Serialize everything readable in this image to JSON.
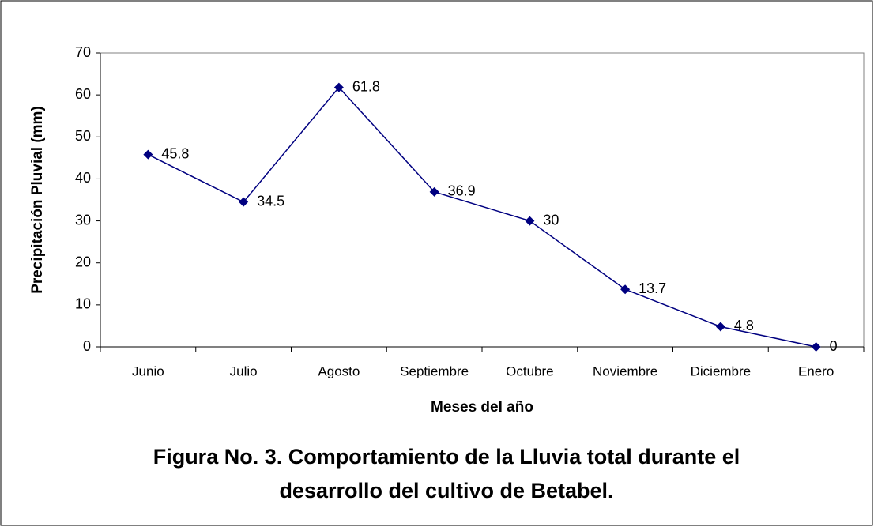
{
  "chart_data": {
    "type": "line",
    "caption": [
      "Figura No. 3. Comportamiento de la Lluvia total durante el",
      "desarrollo del cultivo de Betabel."
    ],
    "x_label": "Meses del año",
    "y_label": "Precipitación Pluvial (mm)",
    "categories": [
      "Junio",
      "Julio",
      "Agosto",
      "Septiembre",
      "Octubre",
      "Noviembre",
      "Diciembre",
      "Enero"
    ],
    "values": [
      45.8,
      34.5,
      61.8,
      36.9,
      30,
      13.7,
      4.8,
      0
    ],
    "color": "#000080",
    "ylim": [
      0,
      70
    ],
    "yticks": [
      0,
      10,
      20,
      30,
      40,
      50,
      60,
      70
    ],
    "grid": false
  }
}
